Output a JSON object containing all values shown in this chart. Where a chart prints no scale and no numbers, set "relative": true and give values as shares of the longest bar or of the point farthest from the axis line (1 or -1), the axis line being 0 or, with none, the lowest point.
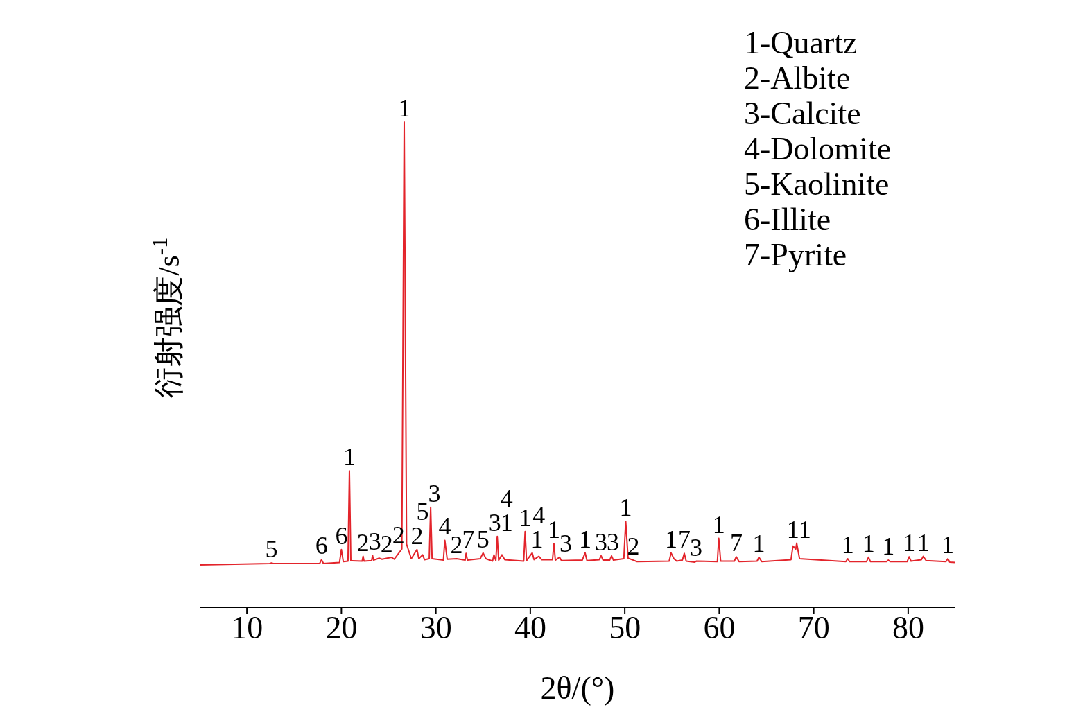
{
  "chart_data": {
    "type": "line",
    "relative": true,
    "xlabel": "2θ/(°)",
    "ylabel": "衍射强度/s$^{-1}$",
    "xlim": [
      5,
      85
    ],
    "xticks": [
      10,
      20,
      30,
      40,
      50,
      60,
      70,
      80
    ],
    "legend": false,
    "marker": "none",
    "line_style": "solid",
    "tick_labels": "x",
    "x": [
      5,
      12.4,
      12.6,
      12.8,
      17.7,
      17.9,
      18.1,
      19.8,
      20.0,
      20.2,
      20.7,
      20.85,
      21.0,
      22.2,
      22.3,
      22.4,
      23.2,
      23.3,
      23.4,
      24.0,
      24.3,
      25.3,
      25.6,
      26.4,
      26.65,
      26.9,
      27.4,
      28.0,
      28.2,
      28.6,
      28.8,
      29.3,
      29.45,
      29.6,
      30.8,
      30.95,
      31.2,
      32.2,
      33.1,
      33.2,
      33.35,
      34.7,
      35.0,
      35.3,
      36.0,
      36.15,
      36.35,
      36.5,
      36.65,
      37.0,
      37.3,
      39.3,
      39.45,
      39.6,
      40.2,
      40.4,
      40.9,
      41.2,
      42.35,
      42.5,
      42.65,
      43.1,
      43.3,
      45.5,
      45.8,
      46.0,
      47.3,
      47.5,
      47.7,
      48.4,
      48.6,
      48.8,
      49.9,
      50.1,
      50.35,
      50.9,
      51.3,
      54.7,
      54.9,
      55.2,
      55.5,
      56.1,
      56.3,
      56.5,
      57.4,
      57.6,
      59.8,
      59.95,
      60.15,
      61.6,
      61.8,
      62.1,
      64.0,
      64.2,
      64.5,
      67.6,
      67.8,
      68.1,
      68.2,
      68.5,
      73.4,
      73.6,
      73.8,
      75.6,
      75.8,
      76.0,
      77.7,
      77.9,
      78.1,
      79.9,
      80.1,
      80.3,
      81.4,
      81.6,
      81.9,
      84.0,
      84.2,
      84.4,
      85
    ],
    "series": [
      {
        "color": "#e3242b",
        "values": [
          0.087,
          0.09,
          0.091,
          0.09,
          0.09,
          0.098,
          0.09,
          0.092,
          0.119,
          0.094,
          0.095,
          0.281,
          0.096,
          0.095,
          0.105,
          0.095,
          0.096,
          0.107,
          0.097,
          0.101,
          0.099,
          0.103,
          0.099,
          0.12,
          1,
          0.13,
          0.1,
          0.119,
          0.1,
          0.108,
          0.098,
          0.1,
          0.206,
          0.1,
          0.097,
          0.138,
          0.099,
          0.1,
          0.097,
          0.111,
          0.097,
          0.1,
          0.112,
          0.1,
          0.095,
          0.108,
          0.096,
          0.146,
          0.097,
          0.108,
          0.098,
          0.095,
          0.156,
          0.096,
          0.112,
          0.098,
          0.105,
          0.098,
          0.098,
          0.131,
          0.097,
          0.103,
          0.096,
          0.097,
          0.112,
          0.096,
          0.098,
          0.106,
          0.097,
          0.097,
          0.106,
          0.097,
          0.1,
          0.177,
          0.101,
          0.097,
          0.094,
          0.095,
          0.112,
          0.1,
          0.095,
          0.097,
          0.111,
          0.095,
          0.093,
          0.095,
          0.094,
          0.142,
          0.095,
          0.095,
          0.104,
          0.094,
          0.095,
          0.103,
          0.094,
          0.098,
          0.126,
          0.12,
          0.132,
          0.1,
          0.094,
          0.1,
          0.094,
          0.094,
          0.103,
          0.094,
          0.094,
          0.097,
          0.094,
          0.094,
          0.104,
          0.095,
          0.098,
          0.105,
          0.096,
          0.094,
          0.1,
          0.093,
          0.092
        ]
      }
    ],
    "annotations": [
      "1-Quartz",
      "2-Albite",
      "3-Calcite",
      "4-Dolomite",
      "5-Kaolinite",
      "6-Illite",
      "7-Pyrite",
      {
        "text": "5",
        "x": 12.6,
        "y": 0.091
      },
      {
        "text": "6",
        "x": 17.9,
        "y": 0.098
      },
      {
        "text": "6",
        "x": 20.0,
        "y": 0.119
      },
      {
        "text": "1",
        "x": 20.85,
        "y": 0.281
      },
      {
        "text": "2",
        "x": 22.3,
        "y": 0.105
      },
      {
        "text": "3",
        "x": 23.3,
        "y": 0.107
      },
      {
        "text": "2",
        "x": 24.0,
        "y": 0.101
      },
      {
        "text": "2",
        "x": 25.3,
        "y": 0.103
      },
      {
        "text": "1",
        "x": 26.65,
        "y": 1
      },
      {
        "text": "2",
        "x": 28.0,
        "y": 0.119
      },
      {
        "text": "5",
        "x": 28.6,
        "y": 0.108
      },
      {
        "text": "3",
        "x": 29.45,
        "y": 0.206
      },
      {
        "text": "4",
        "x": 30.95,
        "y": 0.138
      },
      {
        "text": "2",
        "x": 32.2,
        "y": 0.1
      },
      {
        "text": "7",
        "x": 33.2,
        "y": 0.111
      },
      {
        "text": "5",
        "x": 35.0,
        "y": 0.112
      },
      {
        "text": "3",
        "x": 36.15,
        "y": 0.108
      },
      {
        "text": "1",
        "x": 36.5,
        "y": 0.146
      },
      {
        "text": "4",
        "x": 37.0,
        "y": 0.108
      },
      {
        "text": "1",
        "x": 39.45,
        "y": 0.156
      },
      {
        "text": "1",
        "x": 40.2,
        "y": 0.112
      },
      {
        "text": "4",
        "x": 40.9,
        "y": 0.105
      },
      {
        "text": "1",
        "x": 42.5,
        "y": 0.131
      },
      {
        "text": "3",
        "x": 43.1,
        "y": 0.103
      },
      {
        "text": "1",
        "x": 45.8,
        "y": 0.112
      },
      {
        "text": "3",
        "x": 47.5,
        "y": 0.106
      },
      {
        "text": "3",
        "x": 48.6,
        "y": 0.106
      },
      {
        "text": "1",
        "x": 50.1,
        "y": 0.177
      },
      {
        "text": "2",
        "x": 50.9,
        "y": 0.097
      },
      {
        "text": "1",
        "x": 54.9,
        "y": 0.112
      },
      {
        "text": "7",
        "x": 56.3,
        "y": 0.111
      },
      {
        "text": "3",
        "x": 57.4,
        "y": 0.093
      },
      {
        "text": "1",
        "x": 59.95,
        "y": 0.142
      },
      {
        "text": "7",
        "x": 61.8,
        "y": 0.104
      },
      {
        "text": "1",
        "x": 64.2,
        "y": 0.103
      },
      {
        "text": "1",
        "x": 67.8,
        "y": 0.126
      },
      {
        "text": "1",
        "x": 68.2,
        "y": 0.132
      },
      {
        "text": "1",
        "x": 73.6,
        "y": 0.1
      },
      {
        "text": "1",
        "x": 75.8,
        "y": 0.103
      },
      {
        "text": "1",
        "x": 77.9,
        "y": 0.097
      },
      {
        "text": "1",
        "x": 80.1,
        "y": 0.104
      },
      {
        "text": "1",
        "x": 81.6,
        "y": 0.105
      },
      {
        "text": "1",
        "x": 84.2,
        "y": 0.1
      }
    ]
  }
}
